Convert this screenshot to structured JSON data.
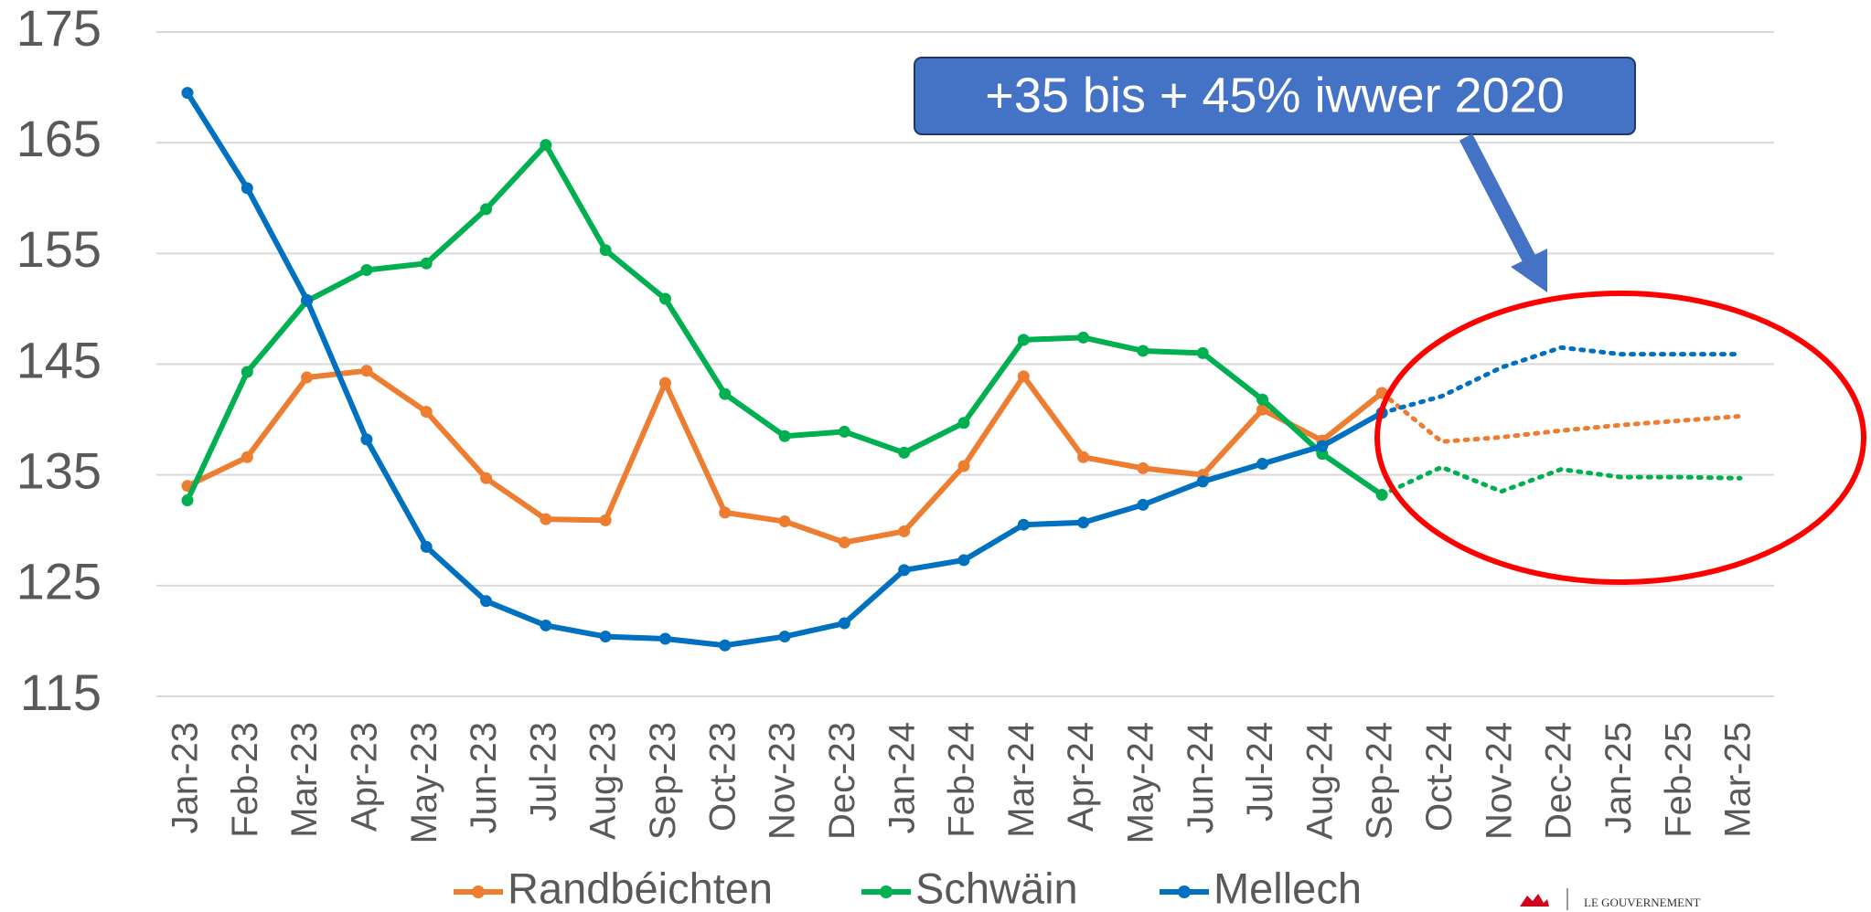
{
  "chart_data": {
    "type": "line",
    "categories": [
      "Jan-23",
      "Feb-23",
      "Mar-23",
      "Apr-23",
      "May-23",
      "Jun-23",
      "Jul-23",
      "Aug-23",
      "Sep-23",
      "Oct-23",
      "Nov-23",
      "Dec-23",
      "Jan-24",
      "Feb-24",
      "Mar-24",
      "Apr-24",
      "May-24",
      "Jun-24",
      "Jul-24",
      "Aug-24",
      "Sep-24",
      "Oct-24",
      "Nov-24",
      "Dec-24",
      "Jan-25",
      "Feb-25",
      "Mar-25"
    ],
    "forecast_start": "Sep-24",
    "series": [
      {
        "name": "Randbéichten",
        "color": "#ed7d31",
        "values": [
          134.0,
          136.6,
          143.8,
          144.4,
          140.7,
          134.7,
          131.0,
          130.9,
          143.3,
          131.6,
          130.8,
          128.9,
          129.9,
          135.8,
          143.9,
          136.6,
          135.6,
          135.0,
          140.9,
          138.1,
          142.4,
          138.0,
          138.4,
          139.0,
          139.5,
          139.9,
          140.3
        ]
      },
      {
        "name": "Schwäin",
        "color": "#00b050",
        "values": [
          132.7,
          144.3,
          150.7,
          153.5,
          154.1,
          159.0,
          164.8,
          155.3,
          150.9,
          142.3,
          138.5,
          138.9,
          137.0,
          139.7,
          147.2,
          147.4,
          146.2,
          146.0,
          141.8,
          136.9,
          133.2,
          135.7,
          133.5,
          135.5,
          134.8,
          134.8,
          134.7
        ]
      },
      {
        "name": "Mellech",
        "color": "#0070c0",
        "values": [
          169.5,
          160.9,
          150.8,
          138.2,
          128.5,
          123.6,
          121.4,
          120.4,
          120.2,
          119.6,
          120.4,
          121.6,
          126.4,
          127.3,
          130.5,
          130.7,
          132.3,
          134.4,
          136.0,
          137.6,
          140.6,
          142.1,
          144.7,
          146.5,
          145.9,
          145.9,
          145.9
        ]
      }
    ],
    "ylim": [
      115,
      175
    ],
    "yticks": [
      115,
      125,
      135,
      145,
      155,
      165,
      175
    ],
    "grid": true,
    "annotation": "+35 bis + 45% iwwer 2020",
    "logo_text": "LE GOUVERNEMENT"
  }
}
